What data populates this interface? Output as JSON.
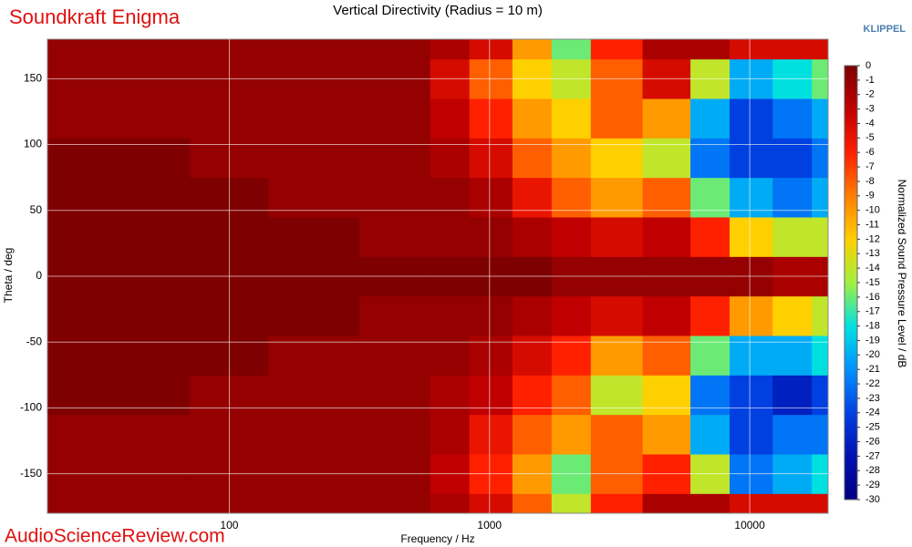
{
  "chart_data": {
    "type": "contour",
    "title": "Vertical Directivity (Radius = 10 m)",
    "subtitle": "Soundkraft Enigma",
    "brand": "KLIPPEL",
    "watermark": "AudioScienceReview.com",
    "x_label": "Frequency / Hz",
    "y_label": "Theta / deg",
    "colorbar_label": "Normalized Sound Pressure Level / dB",
    "x_log": true,
    "grid": true,
    "xlim": [
      20,
      20000
    ],
    "xticks": [
      100,
      1000,
      10000
    ],
    "ylim": [
      -180,
      180
    ],
    "yticks": [
      -150,
      -100,
      -50,
      0,
      50,
      100,
      150
    ],
    "zlim": [
      -30,
      0
    ],
    "zticks": [
      0,
      -1,
      -2,
      -3,
      -4,
      -5,
      -6,
      -7,
      -8,
      -9,
      -10,
      -11,
      -12,
      -13,
      -14,
      -15,
      -16,
      -17,
      -18,
      -19,
      -20,
      -21,
      -22,
      -23,
      -24,
      -25,
      -26,
      -27,
      -28,
      -29,
      -30
    ],
    "colormap": [
      "#000080",
      "#0010b0",
      "#0040e0",
      "#0090ff",
      "#00e0e0",
      "#a0f040",
      "#ffd000",
      "#ff7f00",
      "#ff2000",
      "#c00000",
      "#7f0000"
    ],
    "x": [
      20,
      50,
      100,
      200,
      500,
      700,
      1000,
      1500,
      2000,
      3000,
      5000,
      7000,
      10000,
      15000,
      20000
    ],
    "y": [
      -180,
      -150,
      -120,
      -90,
      -60,
      -30,
      0,
      30,
      60,
      90,
      120,
      150,
      180
    ],
    "z": [
      [
        -1,
        -1,
        -1,
        -1,
        -1,
        -2,
        -4,
        -8,
        -14,
        -6,
        -2,
        -2,
        -4,
        -4,
        -4
      ],
      [
        -1,
        -1,
        -1,
        -1,
        -1,
        -3,
        -6,
        -10,
        -16,
        -8,
        -6,
        -14,
        -22,
        -20,
        -18
      ],
      [
        -1,
        -1,
        -1,
        -1,
        -1,
        -2,
        -5,
        -8,
        -10,
        -8,
        -10,
        -20,
        -24,
        -22,
        -22
      ],
      [
        0,
        0,
        -1,
        -1,
        -1,
        -2,
        -3,
        -6,
        -8,
        -14,
        -12,
        -22,
        -24,
        -26,
        -24
      ],
      [
        0,
        0,
        0,
        -1,
        -1,
        -1,
        -2,
        -4,
        -6,
        -10,
        -8,
        -16,
        -20,
        -20,
        -18
      ],
      [
        0,
        0,
        0,
        0,
        -1,
        -1,
        -1,
        -2,
        -3,
        -4,
        -3,
        -6,
        -10,
        -12,
        -14
      ],
      [
        0,
        0,
        0,
        0,
        0,
        0,
        0,
        0,
        -1,
        -1,
        -1,
        -1,
        -1,
        -2,
        -2
      ],
      [
        0,
        0,
        0,
        0,
        -1,
        -1,
        -1,
        -2,
        -3,
        -4,
        -3,
        -6,
        -12,
        -14,
        -14
      ],
      [
        0,
        0,
        0,
        -1,
        -1,
        -1,
        -2,
        -5,
        -8,
        -10,
        -8,
        -16,
        -20,
        -22,
        -20
      ],
      [
        0,
        0,
        -1,
        -1,
        -1,
        -2,
        -4,
        -8,
        -10,
        -12,
        -14,
        -22,
        -24,
        -24,
        -22
      ],
      [
        -1,
        -1,
        -1,
        -1,
        -1,
        -3,
        -6,
        -10,
        -12,
        -8,
        -10,
        -20,
        -24,
        -22,
        -20
      ],
      [
        -1,
        -1,
        -1,
        -1,
        -1,
        -4,
        -8,
        -12,
        -14,
        -8,
        -4,
        -14,
        -20,
        -18,
        -16
      ],
      [
        -1,
        -1,
        -1,
        -1,
        -1,
        -2,
        -4,
        -10,
        -16,
        -6,
        -2,
        -2,
        -4,
        -4,
        -4
      ]
    ]
  }
}
